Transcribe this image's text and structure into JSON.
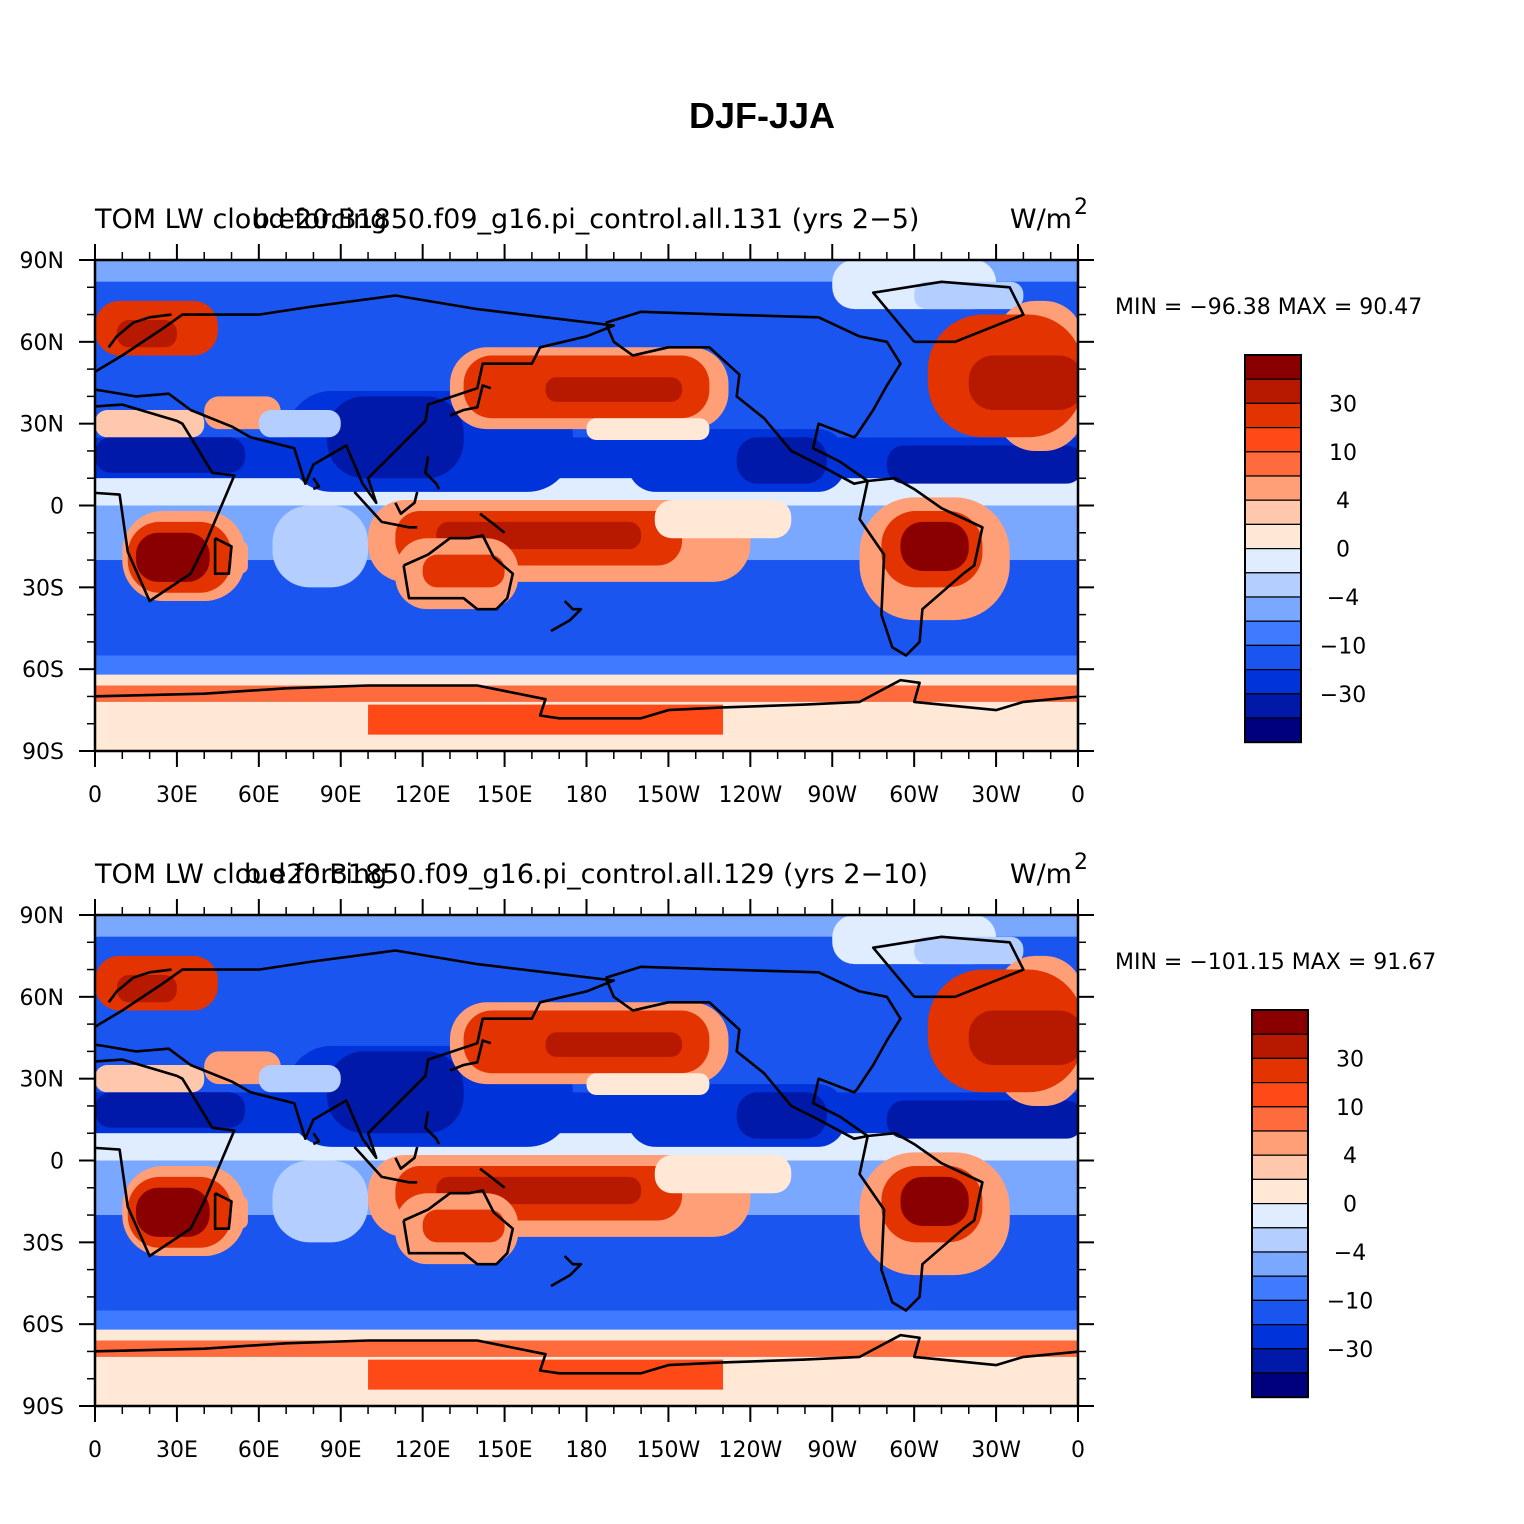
{
  "title": "DJF-JJA",
  "colors": [
    "#00007f",
    "#0019a8",
    "#0033d9",
    "#1a55f0",
    "#3f7bff",
    "#7aa7ff",
    "#b4cfff",
    "#e0ecff",
    "#ffe8d6",
    "#ffc8ad",
    "#ff9f77",
    "#ff6b3d",
    "#ff4a17",
    "#e23300",
    "#b71800",
    "#8a0000"
  ],
  "colorbar_labels": [
    "30",
    "10",
    "4",
    "0",
    "−4",
    "−10",
    "−30"
  ],
  "lon_labels": [
    "0",
    "30E",
    "60E",
    "90E",
    "120E",
    "150E",
    "180",
    "150W",
    "120W",
    "90W",
    "60W",
    "30W",
    "0"
  ],
  "lat_labels": [
    "90N",
    "60N",
    "30N",
    "0",
    "30S",
    "60S",
    "90S"
  ],
  "panels": [
    {
      "variable": "TOM LW cloud forcing",
      "case": "b.e20.B1850.f09_g16.pi_control.all.131 (yrs 2−5)",
      "units": "W/m",
      "units_sup": "2",
      "min_max": "MIN = −96.38 MAX =  90.47"
    },
    {
      "variable": "TOM LW cloud forcing",
      "case": "b.e20.B1850.f09_g16.pi_control.all.129 (yrs 2−10)",
      "units": "W/m",
      "units_sup": "2",
      "min_max": "MIN = −101.15 MAX =  91.67"
    }
  ]
}
